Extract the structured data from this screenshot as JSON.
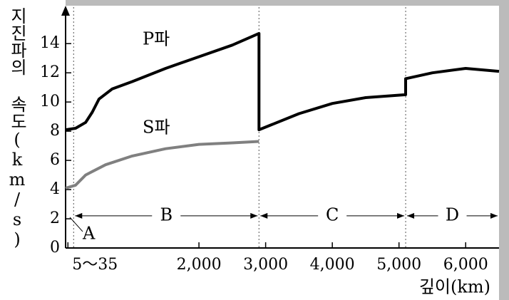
{
  "chart_data": {
    "type": "line",
    "y_label": "지진파의 속도(km/s)",
    "x_label": "깊이(km)",
    "xlim": [
      0,
      6500
    ],
    "ylim": [
      0,
      16.5
    ],
    "xticks": [
      {
        "value": 35,
        "label": "5～35"
      },
      {
        "value": 2000,
        "label": "2,000"
      },
      {
        "value": 3000,
        "label": "3,000"
      },
      {
        "value": 4000,
        "label": "4,000"
      },
      {
        "value": 5000,
        "label": "5,000"
      },
      {
        "value": 6000,
        "label": "6,000"
      }
    ],
    "yticks": [
      0,
      2,
      4,
      6,
      8,
      10,
      12,
      14
    ],
    "boundaries": [
      35,
      2900,
      5100
    ],
    "layers": [
      "A",
      "B",
      "C",
      "D"
    ],
    "series": [
      {
        "name": "P파",
        "color": "#000000",
        "x": [
          0,
          150,
          300,
          400,
          500,
          700,
          1000,
          1500,
          2000,
          2500,
          2900,
          2900,
          3500,
          4000,
          4500,
          5100,
          5100,
          5500,
          6000,
          6500
        ],
        "values": [
          8.1,
          8.2,
          8.6,
          9.3,
          10.2,
          10.9,
          11.4,
          12.3,
          13.1,
          13.9,
          14.7,
          8.1,
          9.2,
          9.9,
          10.3,
          10.5,
          11.6,
          12.0,
          12.3,
          12.1
        ]
      },
      {
        "name": "S파",
        "color": "#808080",
        "x": [
          0,
          150,
          300,
          600,
          1000,
          1500,
          2000,
          2500,
          2900
        ],
        "values": [
          4.1,
          4.3,
          5.0,
          5.7,
          6.3,
          6.8,
          7.1,
          7.2,
          7.3
        ]
      }
    ]
  }
}
